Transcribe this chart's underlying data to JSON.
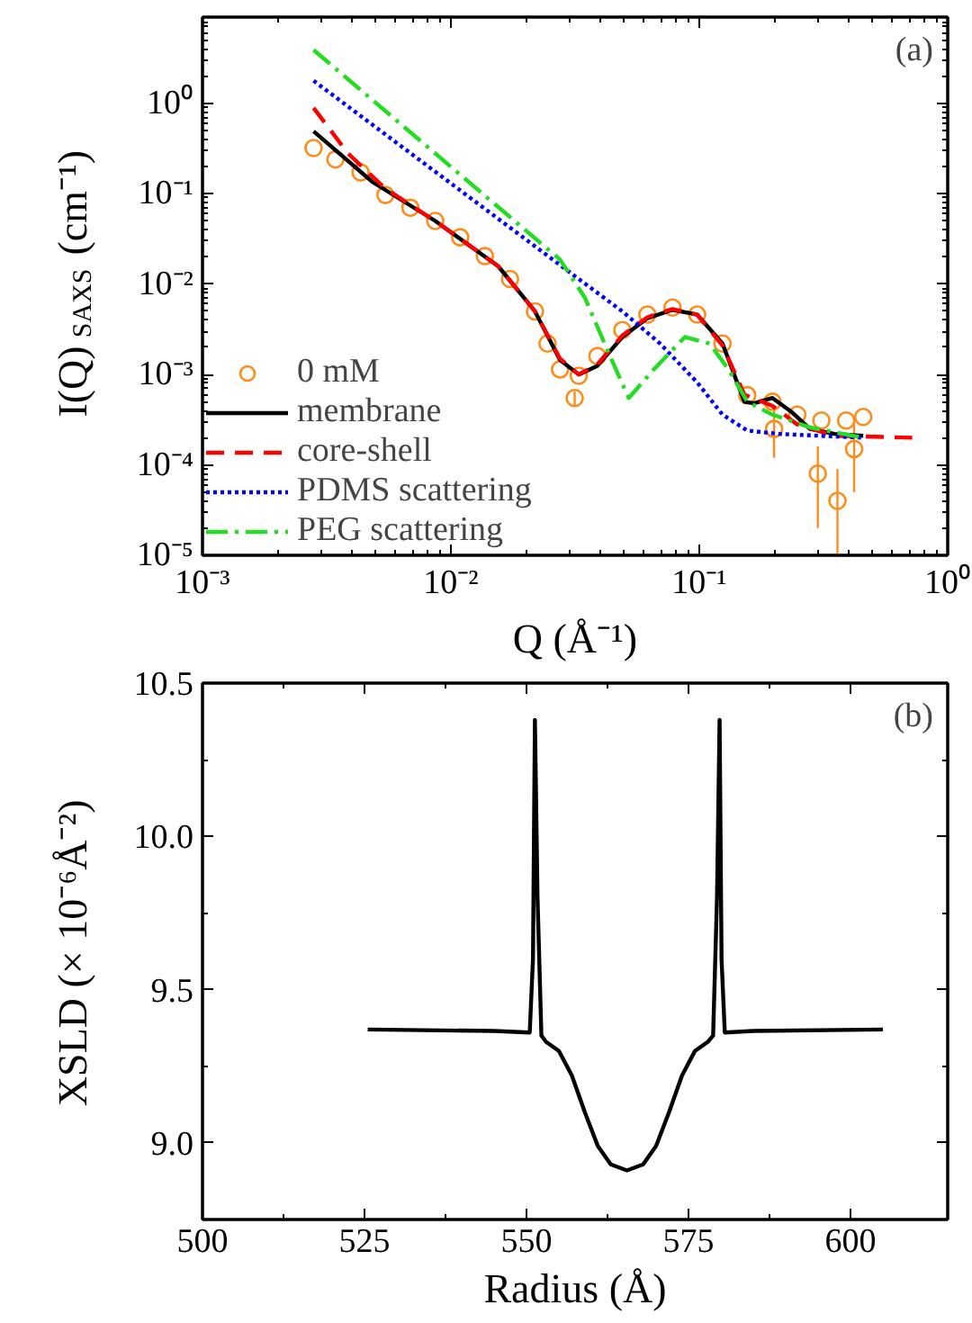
{
  "chart_data": [
    {
      "type": "line",
      "log": "xy",
      "xlabel": "Q (Å⁻¹)",
      "ylabel": "I(Q)$_{SAXS}$ (cm⁻¹)",
      "annotations": [
        "(a)"
      ],
      "legend": "bottom left",
      "grid": false,
      "xlim": [
        0.001,
        1
      ],
      "ylim": [
        1e-05,
        9
      ],
      "xticks": [
        {
          "value": 0.001,
          "label": "10⁻³"
        },
        {
          "value": 0.01,
          "label": "10⁻²"
        },
        {
          "value": 0.1,
          "label": "10⁻¹"
        },
        {
          "value": 1,
          "label": "10⁰"
        }
      ],
      "yticks": [
        {
          "value": 1e-05,
          "label": "10⁻⁵"
        },
        {
          "value": 0.0001,
          "label": "10⁻⁴"
        },
        {
          "value": 0.001,
          "label": "10⁻³"
        },
        {
          "value": 0.01,
          "label": "10⁻²"
        },
        {
          "value": 0.1,
          "label": "10⁻¹"
        },
        {
          "value": 1,
          "label": "10⁰"
        }
      ],
      "series": [
        {
          "name": "0 mM",
          "type": "scatter",
          "marker": "circle",
          "color": "#ff8c1a",
          "x": [
            0.0028,
            0.00343,
            0.00433,
            0.00545,
            0.00687,
            0.00865,
            0.0109,
            0.0137,
            0.0173,
            0.0218,
            0.0245,
            0.0275,
            0.0315,
            0.0327,
            0.0389,
            0.049,
            0.0618,
            0.078,
            0.098,
            0.124,
            0.156,
            0.197,
            0.2,
            0.248,
            0.3,
            0.31,
            0.36,
            0.39,
            0.42,
            0.457
          ],
          "values": [
            0.32,
            0.24,
            0.172,
            0.097,
            0.07,
            0.05,
            0.033,
            0.0204,
            0.0114,
            0.005,
            0.0022,
            0.00114,
            0.00055,
            0.00097,
            0.0016,
            0.0031,
            0.0046,
            0.0055,
            0.0046,
            0.0022,
            0.00059,
            0.0005,
            0.00025,
            0.00036,
            8e-05,
            0.00031,
            4e-05,
            0.00031,
            0.00015,
            0.00034
          ],
          "errors": [
            null,
            null,
            null,
            null,
            null,
            null,
            null,
            null,
            null,
            null,
            null,
            null,
            [
              0.00045,
              0.00065
            ],
            null,
            null,
            null,
            null,
            null,
            null,
            null,
            null,
            null,
            [
              0.00012,
              0.0004
            ],
            null,
            [
              2e-05,
              0.00016
            ],
            null,
            [
              1e-05,
              9e-05
            ],
            null,
            [
              5e-05,
              0.0003
            ],
            null
          ]
        },
        {
          "name": "membrane",
          "type": "line",
          "line_style": "solid",
          "color": "#000000",
          "x": [
            0.0028,
            0.00485,
            0.00865,
            0.0155,
            0.0218,
            0.0275,
            0.0327,
            0.0389,
            0.049,
            0.0618,
            0.078,
            0.098,
            0.124,
            0.152,
            0.166,
            0.197,
            0.234,
            0.279,
            0.351,
            0.457
          ],
          "values": [
            0.49,
            0.134,
            0.05,
            0.0158,
            0.005,
            0.00145,
            0.001,
            0.00125,
            0.0026,
            0.0042,
            0.0052,
            0.0046,
            0.0022,
            0.0005,
            0.00048,
            0.00055,
            0.00039,
            0.00025,
            0.00022,
            0.00021
          ]
        },
        {
          "name": "core-shell",
          "type": "line",
          "line_style": "dashed",
          "color": "#ff0000",
          "x": [
            0.0028,
            0.00385,
            0.00545,
            0.00865,
            0.0155,
            0.0218,
            0.0275,
            0.0327,
            0.0389,
            0.049,
            0.0618,
            0.078,
            0.098,
            0.124,
            0.152,
            0.197,
            0.248,
            0.35,
            0.72
          ],
          "values": [
            0.89,
            0.28,
            0.114,
            0.05,
            0.0158,
            0.005,
            0.0015,
            0.001,
            0.0013,
            0.0027,
            0.0043,
            0.0053,
            0.0046,
            0.0021,
            0.0006,
            0.00045,
            0.00028,
            0.00021,
            0.0002
          ]
        },
        {
          "name": "PDMS scattering",
          "type": "line",
          "line_style": "dotted",
          "color": "#0000ff",
          "x": [
            0.0028,
            0.0327,
            0.049,
            0.0695,
            0.098,
            0.124,
            0.156,
            0.21,
            0.457
          ],
          "values": [
            1.78,
            0.0114,
            0.005,
            0.0022,
            0.00082,
            0.00036,
            0.00024,
            0.00022,
            0.0002
          ]
        },
        {
          "name": "PEG scattering",
          "type": "line",
          "line_style": "dashdot",
          "color": "#22dd22",
          "x": [
            0.0028,
            0.0275,
            0.0347,
            0.0437,
            0.052,
            0.0656,
            0.0875,
            0.11,
            0.131,
            0.156,
            0.197,
            0.279,
            0.457
          ],
          "values": [
            3.9,
            0.0187,
            0.007,
            0.0016,
            0.00055,
            0.00114,
            0.0026,
            0.0022,
            0.00114,
            0.0005,
            0.00036,
            0.00026,
            0.0002
          ]
        }
      ]
    },
    {
      "type": "line",
      "xlabel": "Radius (Å)",
      "ylabel": "XSLD (× 10⁻⁶Å⁻²)",
      "annotations": [
        "(b)"
      ],
      "grid": false,
      "xlim": [
        500,
        615
      ],
      "ylim": [
        8.75,
        10.5
      ],
      "xticks": [
        500,
        525,
        550,
        575,
        600
      ],
      "yticks": [
        {
          "value": 9,
          "label": "9.0"
        },
        {
          "value": 9.5,
          "label": "9.5"
        },
        {
          "value": 10,
          "label": "10.0"
        },
        {
          "value": 10.5,
          "label": "10.5"
        }
      ],
      "series": [
        {
          "color": "#000000",
          "x": [
            525.5,
            545,
            550.5,
            551,
            551.3,
            551.7,
            552.3,
            553,
            555,
            557,
            559,
            561,
            563,
            565.5,
            568,
            570,
            572,
            574,
            576,
            578,
            578.8,
            579.4,
            579.8,
            580.1,
            580.6,
            585,
            605
          ],
          "values": [
            9.37,
            9.365,
            9.36,
            9.6,
            10.38,
            9.8,
            9.35,
            9.33,
            9.3,
            9.22,
            9.1,
            8.99,
            8.93,
            8.91,
            8.93,
            8.99,
            9.1,
            9.22,
            9.3,
            9.33,
            9.35,
            9.8,
            10.38,
            9.6,
            9.36,
            9.365,
            9.37
          ]
        }
      ]
    }
  ]
}
